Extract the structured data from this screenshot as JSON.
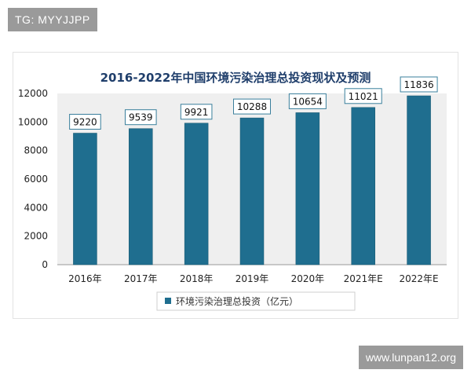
{
  "watermarks": {
    "top_left": "TG: MYYJJPP",
    "bottom_right": "www.lunpan12.org"
  },
  "colors": {
    "bar": "#1f6e8f",
    "bar_edge": "#16566f",
    "plot_bg": "#efefef",
    "title": "#1f3e6b",
    "label_border": "#3a7f9c"
  },
  "chart_data": {
    "type": "bar",
    "title": "2016-2022年中国环境污染治理总投资现状及预测",
    "categories": [
      "2016年",
      "2017年",
      "2018年",
      "2019年",
      "2020年",
      "2021年E",
      "2022年E"
    ],
    "series": [
      {
        "name": "环境污染治理总投资（亿元）",
        "values": [
          9220,
          9539,
          9921,
          10288,
          10654,
          11021,
          11836
        ]
      }
    ],
    "data_labels": [
      "9220",
      "9539",
      "9921",
      "10288",
      "10654",
      "11021",
      "11836"
    ],
    "ylim": [
      0,
      12000
    ],
    "yticks": [
      0,
      2000,
      4000,
      6000,
      8000,
      10000,
      12000
    ],
    "grid": false,
    "legend_position": "bottom",
    "xlabel": "",
    "ylabel": ""
  }
}
